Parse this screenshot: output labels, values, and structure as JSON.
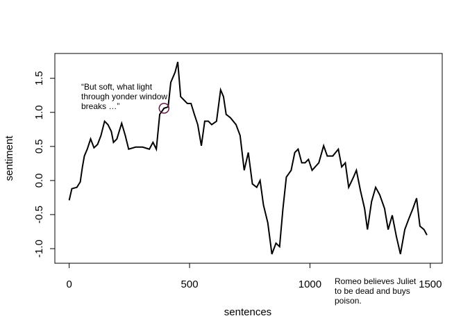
{
  "chart_data": {
    "type": "line",
    "xlabel": "sentences",
    "ylabel": "sentiment",
    "x": [
      0,
      11,
      32,
      46,
      55,
      63,
      75,
      89,
      103,
      118,
      132,
      147,
      161,
      175,
      184,
      198,
      218,
      233,
      247,
      276,
      305,
      333,
      348,
      362,
      376,
      394,
      411,
      422,
      440,
      451,
      463,
      477,
      491,
      506,
      520,
      534,
      549,
      563,
      578,
      592,
      612,
      629,
      641,
      652,
      670,
      693,
      710,
      727,
      744,
      761,
      779,
      793,
      807,
      825,
      842,
      859,
      874,
      888,
      902,
      922,
      937,
      951,
      966,
      980,
      994,
      1009,
      1037,
      1057,
      1072,
      1095,
      1118,
      1132,
      1147,
      1161,
      1181,
      1193,
      1210,
      1227,
      1239,
      1256,
      1273,
      1290,
      1310,
      1325,
      1342,
      1359,
      1376,
      1394,
      1411,
      1428,
      1443,
      1457,
      1474,
      1486
    ],
    "values": [
      -0.29,
      -0.12,
      -0.1,
      -0.02,
      0.2,
      0.36,
      0.46,
      0.61,
      0.48,
      0.53,
      0.66,
      0.87,
      0.82,
      0.72,
      0.56,
      0.61,
      0.84,
      0.66,
      0.46,
      0.49,
      0.49,
      0.46,
      0.56,
      0.46,
      0.97,
      1.06,
      1.08,
      1.44,
      1.59,
      1.74,
      1.23,
      1.18,
      1.13,
      1.13,
      0.97,
      0.82,
      0.51,
      0.87,
      0.87,
      0.82,
      0.87,
      1.33,
      1.23,
      0.97,
      0.92,
      0.82,
      0.66,
      0.15,
      0.41,
      -0.05,
      -0.1,
      0.0,
      -0.36,
      -0.62,
      -1.08,
      -0.92,
      -0.97,
      -0.41,
      0.05,
      0.15,
      0.41,
      0.46,
      0.26,
      0.26,
      0.31,
      0.15,
      0.26,
      0.51,
      0.36,
      0.36,
      0.46,
      0.2,
      0.26,
      -0.1,
      0.05,
      0.15,
      -0.15,
      -0.41,
      -0.72,
      -0.31,
      -0.1,
      -0.21,
      -0.41,
      -0.72,
      -0.51,
      -0.82,
      -1.08,
      -0.72,
      -0.56,
      -0.41,
      -0.26,
      -0.67,
      -0.72,
      -0.8
    ],
    "color": "#000000",
    "xlim": [
      -59.6,
      1549.6
    ],
    "xticks": [
      0,
      500,
      1000,
      1500
    ],
    "ylim": [
      -1.214,
      1.864
    ],
    "yticks": [
      {
        "value": -1,
        "label": "-1.0"
      },
      -0.5,
      {
        "value": 0,
        "label": "0.0"
      },
      0.5,
      {
        "value": 1,
        "label": "1.0"
      },
      1.5
    ],
    "annotations": [
      {
        "lines": [
          "“But soft, what light",
          "through yonder window",
          "breaks …”"
        ],
        "x": 394,
        "y": 1.06,
        "color": "#5c1a45"
      },
      {
        "lines": [
          "Romeo believes Juliet",
          "to be dead and buys",
          "poison."
        ],
        "color": "#0d2350"
      }
    ]
  }
}
